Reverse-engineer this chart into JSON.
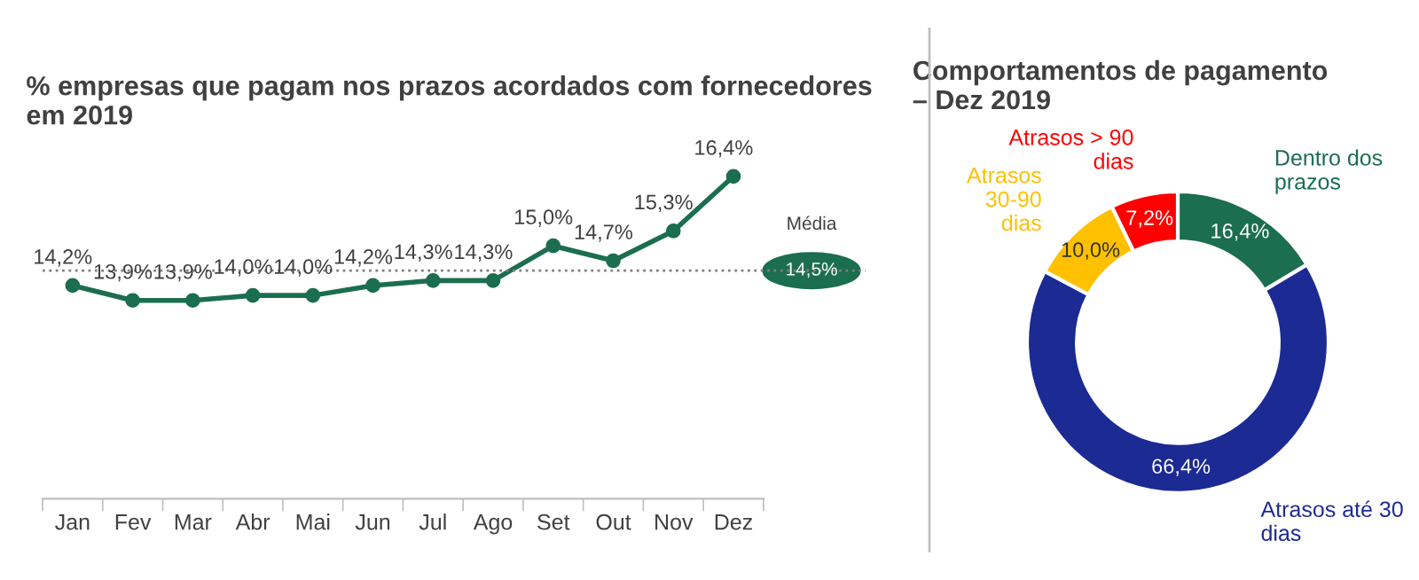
{
  "chart_data": [
    {
      "type": "line",
      "title": "% empresas que pagam nos prazos acordados com fornecedores\nem 2019",
      "categories": [
        "Jan",
        "Fev",
        "Mar",
        "Abr",
        "Mai",
        "Jun",
        "Jul",
        "Ago",
        "Set",
        "Out",
        "Nov",
        "Dez"
      ],
      "series": [
        {
          "color": "#1b6e4e",
          "values": [
            14.2,
            13.9,
            13.9,
            14.0,
            14.0,
            14.2,
            14.3,
            14.3,
            15.0,
            14.7,
            15.3,
            16.4
          ],
          "value_labels": [
            "14,2%",
            "13,9%",
            "13,9%",
            "14,0%",
            "14,0%",
            "14,2%",
            "14,3%",
            "14,3%",
            "15,0%",
            "14,7%",
            "15,3%",
            "16,4%"
          ]
        }
      ],
      "marker": "circle",
      "grid": false,
      "ref_lines": [
        {
          "axis": "y",
          "value": 14.5,
          "label": "Média",
          "color": "#7f7f7f",
          "line_style": "dotted"
        }
      ],
      "annotations": [
        "14,5%"
      ]
    },
    {
      "type": "donut",
      "title": "Comportamentos de pagamento\n– Dez 2019",
      "categories": [
        "Dentro dos\nprazos",
        "Atrasos até 30\ndias",
        "Atrasos\n30-90\ndias",
        "Atrasos > 90\ndias"
      ],
      "values": [
        16.4,
        66.4,
        10.0,
        7.2
      ],
      "colors": [
        "#1b6e4e",
        "#1c2a94",
        "#ffc000",
        "#ff0000"
      ],
      "value_labels": [
        "16,4%",
        "66,4%",
        "10,0%",
        "7,2%"
      ]
    }
  ]
}
